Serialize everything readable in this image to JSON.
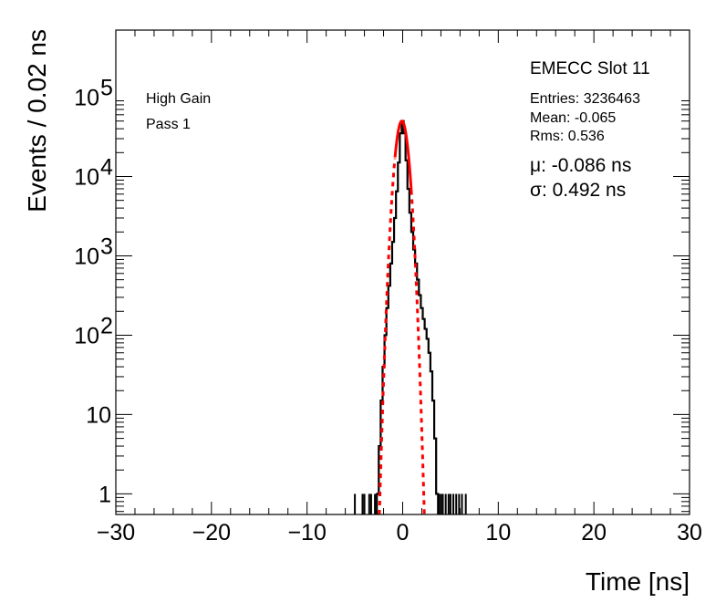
{
  "chart_data": {
    "type": "histogram",
    "xlabel": "Time [ns]",
    "ylabel": "Events / 0.02 ns",
    "xlim": [
      -30,
      30
    ],
    "ylim": [
      0.55,
      700000
    ],
    "ylog": true,
    "x_ticks": [
      -30,
      -20,
      -10,
      0,
      10,
      20,
      30
    ],
    "x_tick_labels": [
      "−30",
      "−20",
      "−10",
      "0",
      "10",
      "20",
      "30"
    ],
    "y_ticks": [
      {
        "value": 1,
        "label": "1",
        "exp": ""
      },
      {
        "value": 10,
        "label": "10",
        "exp": ""
      },
      {
        "value": 100,
        "label": "10",
        "exp": "2"
      },
      {
        "value": 1000,
        "label": "10",
        "exp": "3"
      },
      {
        "value": 10000,
        "label": "10",
        "exp": "4"
      },
      {
        "value": 100000,
        "label": "10",
        "exp": "5"
      }
    ],
    "labels_left": [
      "High Gain",
      "Pass 1"
    ],
    "title": "EMECC Slot 11",
    "stats": [
      "Entries: 3236463",
      "Mean: -0.065",
      "Rms: 0.536"
    ],
    "fit_results": [
      "μ: -0.086 ns",
      "σ: 0.492 ns"
    ],
    "histogram": {
      "name": "data",
      "color": "#000000",
      "points": [
        [
          -2.6,
          1
        ],
        [
          -2.4,
          4
        ],
        [
          -2.2,
          15
        ],
        [
          -2.0,
          40
        ],
        [
          -1.8,
          100
        ],
        [
          -1.6,
          220
        ],
        [
          -1.4,
          420
        ],
        [
          -1.2,
          800
        ],
        [
          -1.0,
          1500
        ],
        [
          -0.8,
          3000
        ],
        [
          -0.6,
          6500
        ],
        [
          -0.4,
          15000
        ],
        [
          -0.2,
          35000
        ],
        [
          0.0,
          50000
        ],
        [
          0.2,
          35000
        ],
        [
          0.4,
          16000
        ],
        [
          0.6,
          7000
        ],
        [
          0.8,
          3500
        ],
        [
          1.0,
          2000
        ],
        [
          1.2,
          1200
        ],
        [
          1.4,
          800
        ],
        [
          1.6,
          500
        ],
        [
          1.8,
          320
        ],
        [
          2.0,
          220
        ],
        [
          2.2,
          160
        ],
        [
          2.4,
          120
        ],
        [
          2.6,
          90
        ],
        [
          2.8,
          60
        ],
        [
          3.0,
          35
        ],
        [
          3.2,
          15
        ],
        [
          3.4,
          5
        ],
        [
          3.6,
          1
        ]
      ],
      "isolated_entries": [
        -5.0,
        -4.2,
        -4.0,
        -3.5,
        -3.3,
        -2.9,
        3.8,
        4.0,
        4.2,
        4.5,
        4.8,
        5.0,
        5.3,
        5.6,
        5.9,
        6.2,
        6.6
      ]
    },
    "fit": {
      "name": "gaussian fit",
      "color": "#ff0000",
      "amplitude": 50000,
      "mean": -0.086,
      "sigma": 0.492,
      "solid_range": [
        -0.8,
        0.9
      ],
      "x_range": [
        -2.45,
        2.3
      ]
    }
  }
}
